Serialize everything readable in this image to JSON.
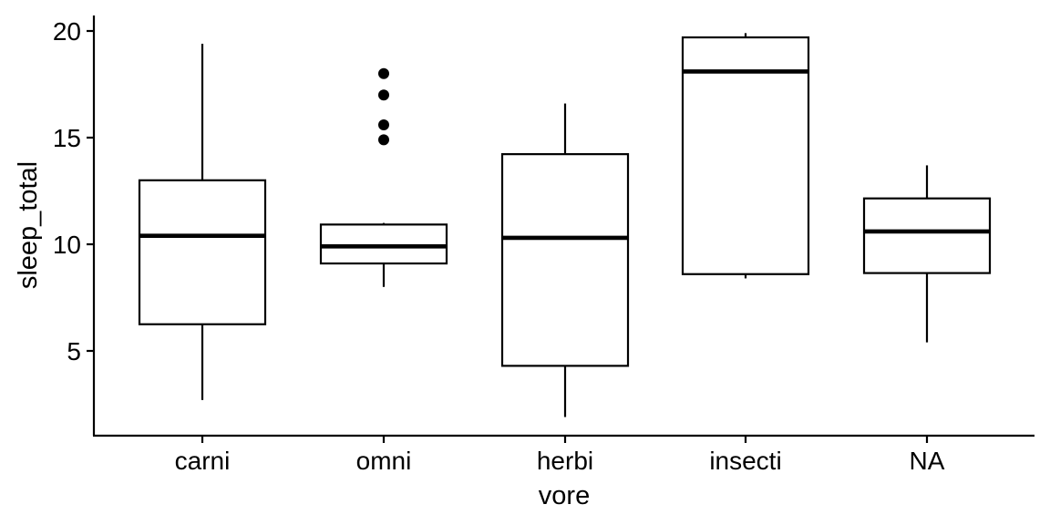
{
  "chart_data": {
    "type": "box",
    "title": "",
    "xlabel": "vore",
    "ylabel": "sleep_total",
    "ylim": [
      1.0,
      20.5
    ],
    "yticks": [
      5,
      10,
      15,
      20
    ],
    "grid": false,
    "categories": [
      "carni",
      "omni",
      "herbi",
      "insecti",
      "NA"
    ],
    "boxes": [
      {
        "category": "carni",
        "whisker_low": 2.7,
        "q1": 6.25,
        "median": 10.4,
        "q3": 13.0,
        "whisker_high": 19.4,
        "outliers": []
      },
      {
        "category": "omni",
        "whisker_low": 8.0,
        "q1": 9.1,
        "median": 9.9,
        "q3": 10.925,
        "whisker_high": 11.0,
        "outliers": [
          14.9,
          15.6,
          17.0,
          18.0
        ]
      },
      {
        "category": "herbi",
        "whisker_low": 1.9,
        "q1": 4.3,
        "median": 10.3,
        "q3": 14.225,
        "whisker_high": 16.6,
        "outliers": []
      },
      {
        "category": "insecti",
        "whisker_low": 8.4,
        "q1": 8.6,
        "median": 18.1,
        "q3": 19.7,
        "whisker_high": 19.9,
        "outliers": []
      },
      {
        "category": "NA",
        "whisker_low": 5.4,
        "q1": 8.65,
        "median": 10.6,
        "q3": 12.15,
        "whisker_high": 13.7,
        "outliers": []
      }
    ],
    "colors": {
      "stroke": "#000000",
      "fill": "#ffffff",
      "background": "#ffffff"
    }
  }
}
